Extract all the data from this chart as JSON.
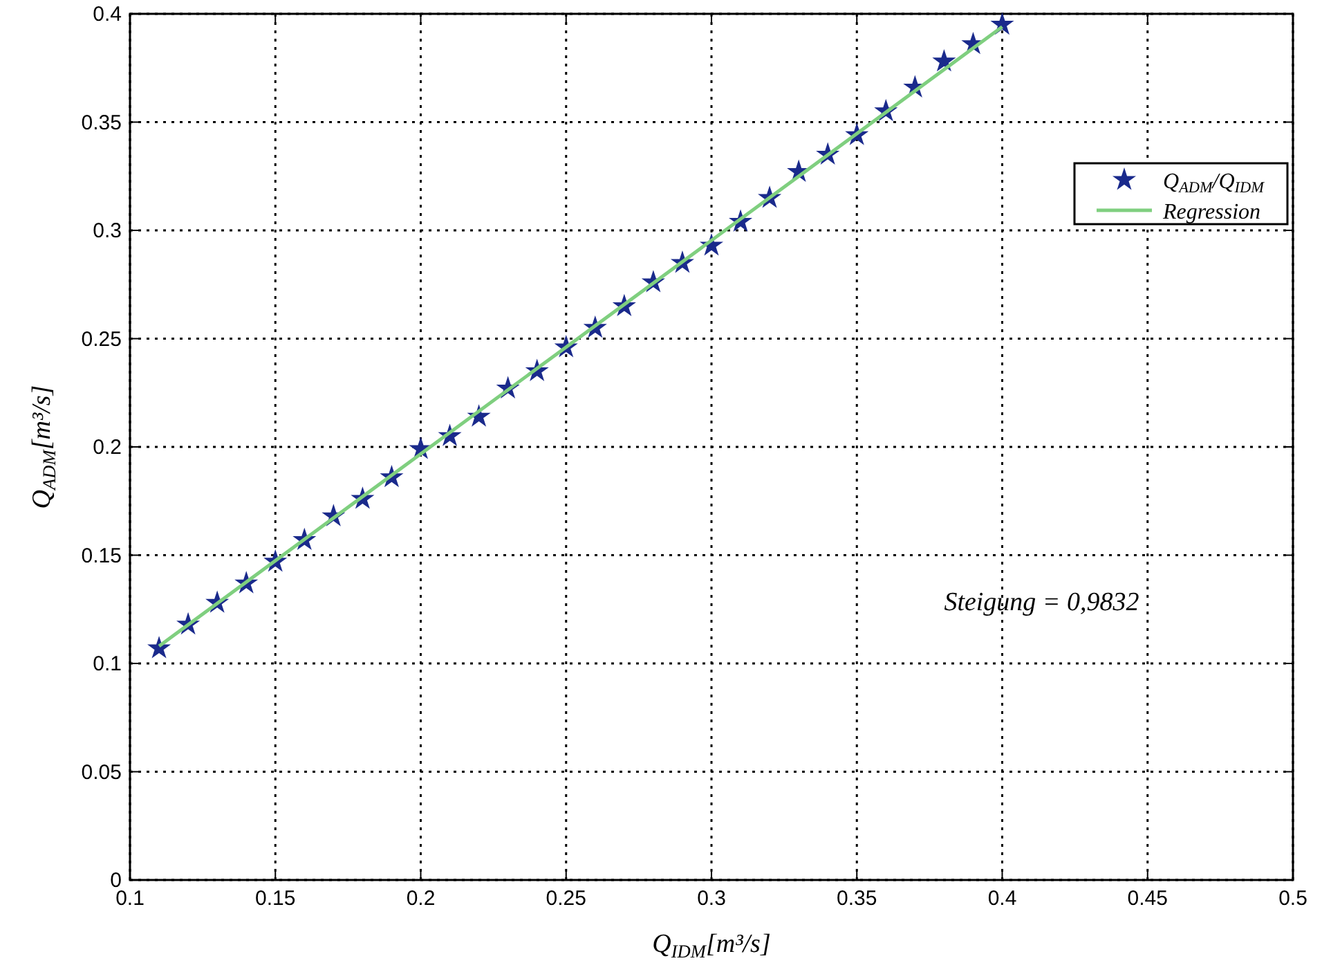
{
  "chart_data": {
    "type": "scatter",
    "xlabel": "Q$_{IDM}$[m³/s]",
    "ylabel": "Q$_{ADM}$[m³/s]",
    "xlim": [
      0.1,
      0.5
    ],
    "xticks": [
      0.1,
      0.15,
      0.2,
      0.25,
      0.3,
      0.35,
      0.4,
      0.45,
      0.5
    ],
    "ylim": [
      0,
      0.4
    ],
    "yticks": [
      0,
      0.05,
      0.1,
      0.15,
      0.2,
      0.25,
      0.3,
      0.35,
      0.4
    ],
    "grid": true,
    "legend": "top right",
    "annotations": [
      "Steigung = 0,9832"
    ],
    "series": [
      {
        "name": "Q$_{ADM}$/Q$_{IDM}$",
        "marker": "star",
        "color": "#1a2a8c",
        "x": [
          0.11,
          0.12,
          0.13,
          0.14,
          0.15,
          0.16,
          0.17,
          0.18,
          0.19,
          0.2,
          0.21,
          0.22,
          0.23,
          0.24,
          0.25,
          0.26,
          0.27,
          0.28,
          0.29,
          0.3,
          0.31,
          0.32,
          0.33,
          0.34,
          0.35,
          0.36,
          0.37,
          0.38,
          0.39,
          0.4
        ],
        "values": [
          0.107,
          0.118,
          0.128,
          0.137,
          0.147,
          0.157,
          0.168,
          0.176,
          0.186,
          0.199,
          0.205,
          0.214,
          0.227,
          0.235,
          0.246,
          0.255,
          0.265,
          0.276,
          0.285,
          0.293,
          0.304,
          0.315,
          0.327,
          0.335,
          0.344,
          0.355,
          0.366,
          0.378,
          0.386,
          0.395
        ]
      },
      {
        "name": "Regression",
        "type": "line",
        "color": "#7fcf7f",
        "marker": "none",
        "line_style": "solid",
        "x": [
          0.11,
          0.4
        ],
        "values": [
          0.108,
          0.394
        ]
      }
    ]
  }
}
